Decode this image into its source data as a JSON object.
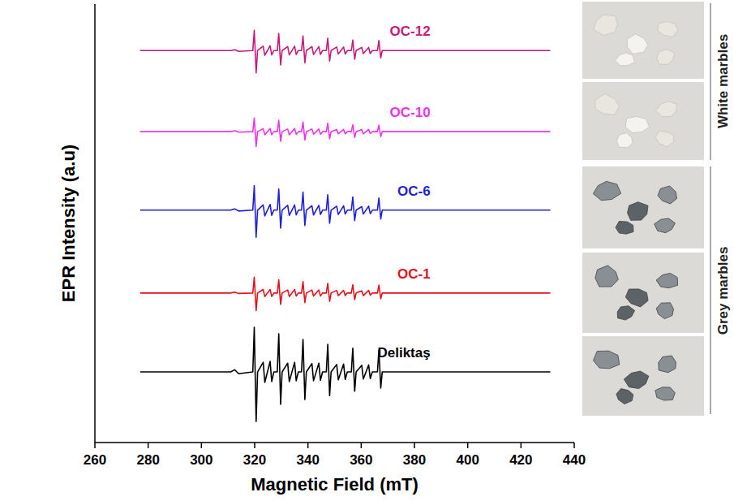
{
  "chart_data": {
    "type": "line",
    "x_label": "Magnetic Field (mT)",
    "y_label": "EPR Intensity (a.u)",
    "annotations": [
      "White marbles",
      "Grey marbles"
    ],
    "x": [
      277,
      300,
      311,
      312.5,
      314,
      319.3,
      319.85,
      320.55,
      321.1,
      323.2,
      323.8,
      325.8,
      326.4,
      327.2,
      328.5,
      329.05,
      329.75,
      330.3,
      332.4,
      333.0,
      335.0,
      335.6,
      336.4,
      337.6,
      338.15,
      338.85,
      339.4,
      341.5,
      342.1,
      344.1,
      344.7,
      345.5,
      346.9,
      347.45,
      348.15,
      348.7,
      350.8,
      351.4,
      353.4,
      354.0,
      354.8,
      356.3,
      356.85,
      357.55,
      358.1,
      360.2,
      360.8,
      362.8,
      363.4,
      364.2,
      366.1,
      366.65,
      367.35,
      367.9,
      370,
      375,
      380,
      400,
      431
    ],
    "series": [
      {
        "name": "OC-12",
        "color": "#c8197c",
        "values": [
          89.4,
          89.4,
          89.4,
          89.6,
          89.2,
          89.4,
          94.0,
          84.3,
          89.4,
          90.4,
          88.3,
          90.5,
          88.4,
          89.4,
          89.4,
          93.3,
          86.1,
          89.4,
          90.3,
          88.4,
          90.4,
          88.5,
          89.4,
          89.4,
          92.7,
          86.6,
          89.4,
          90.3,
          88.5,
          90.3,
          88.5,
          89.4,
          89.4,
          92.2,
          87.0,
          89.4,
          90.2,
          88.6,
          90.2,
          88.6,
          89.4,
          89.4,
          91.8,
          87.4,
          89.4,
          90.1,
          88.7,
          90.1,
          88.7,
          89.4,
          89.4,
          91.7,
          87.7,
          89.4,
          89.4,
          89.4,
          89.4,
          89.4,
          89.4
        ]
      },
      {
        "name": "OC-10",
        "color": "#ee33ee",
        "values": [
          70.9,
          70.9,
          70.9,
          71.1,
          70.8,
          70.9,
          74.0,
          67.5,
          70.9,
          71.6,
          70.2,
          71.6,
          70.2,
          70.9,
          70.9,
          73.5,
          68.7,
          70.9,
          71.5,
          70.2,
          71.6,
          70.3,
          70.9,
          70.9,
          73.1,
          69.0,
          70.9,
          71.5,
          70.3,
          71.5,
          70.3,
          70.9,
          70.9,
          72.8,
          69.3,
          70.9,
          71.4,
          70.4,
          71.4,
          70.4,
          70.9,
          70.9,
          72.5,
          69.6,
          70.9,
          71.4,
          70.4,
          71.4,
          70.5,
          70.9,
          70.9,
          72.4,
          69.8,
          70.9,
          70.9,
          70.9,
          70.9,
          70.9,
          70.9
        ]
      },
      {
        "name": "OC-6",
        "color": "#1f1fdd",
        "values": [
          53.0,
          53.0,
          53.0,
          53.3,
          52.8,
          53.0,
          58.6,
          46.8,
          53.0,
          54.2,
          51.7,
          54.3,
          51.8,
          53.0,
          53.0,
          57.8,
          48.9,
          53.0,
          54.1,
          51.8,
          54.2,
          51.9,
          53.0,
          53.0,
          57.1,
          49.5,
          53.0,
          54.0,
          51.9,
          54.1,
          52.0,
          53.0,
          53.0,
          56.5,
          50.0,
          53.0,
          53.9,
          52.0,
          54.0,
          52.1,
          53.0,
          53.0,
          56.0,
          50.6,
          53.0,
          53.8,
          52.1,
          53.9,
          52.2,
          53.0,
          53.0,
          55.8,
          51.0,
          53.0,
          53.0,
          53.0,
          53.0,
          53.0,
          53.0
        ]
      },
      {
        "name": "OC-1",
        "color": "#e4121b",
        "values": [
          34.1,
          34.1,
          34.1,
          34.3,
          34.0,
          34.1,
          37.7,
          30.1,
          34.1,
          34.9,
          33.3,
          34.9,
          33.3,
          34.1,
          34.1,
          37.1,
          31.5,
          34.1,
          34.8,
          33.3,
          34.9,
          33.4,
          34.1,
          34.1,
          36.7,
          31.9,
          34.1,
          34.8,
          33.4,
          34.8,
          33.4,
          34.1,
          34.1,
          36.3,
          32.2,
          34.1,
          34.7,
          33.5,
          34.7,
          33.5,
          34.1,
          34.1,
          36.0,
          32.6,
          34.1,
          34.6,
          33.5,
          34.7,
          33.6,
          34.1,
          34.1,
          35.9,
          32.8,
          34.1,
          34.1,
          34.1,
          34.1,
          34.1,
          34.1
        ]
      },
      {
        "name": "Deliktaş",
        "color": "#000000",
        "values": [
          16.1,
          16.1,
          16.1,
          16.6,
          15.7,
          16.1,
          26.3,
          4.8,
          16.1,
          18.3,
          13.7,
          18.5,
          13.9,
          16.1,
          16.1,
          24.8,
          8.7,
          16.1,
          18.1,
          13.9,
          18.3,
          14.1,
          16.1,
          16.1,
          23.5,
          9.8,
          16.1,
          18.0,
          14.1,
          18.1,
          14.2,
          16.1,
          16.1,
          22.4,
          10.7,
          16.1,
          17.8,
          14.3,
          17.9,
          14.4,
          16.1,
          16.1,
          21.5,
          11.7,
          16.1,
          17.6,
          14.5,
          17.7,
          14.6,
          16.1,
          16.1,
          21.1,
          12.4,
          16.1,
          16.1,
          16.1,
          16.1,
          16.1,
          16.1
        ]
      }
    ],
    "xlim": [
      260,
      440
    ],
    "xticks": [
      260,
      280,
      300,
      320,
      340,
      360,
      380,
      400,
      420,
      440
    ],
    "ylim": [
      0,
      100
    ],
    "yticks": [],
    "tick_labels": "x",
    "grid": false
  }
}
